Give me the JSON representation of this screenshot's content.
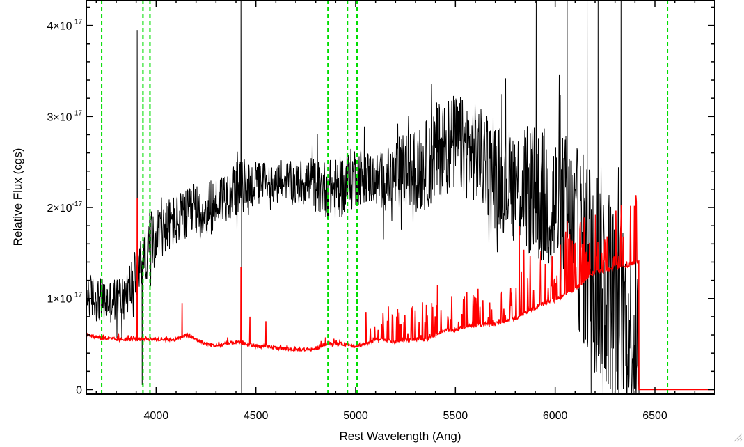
{
  "chart_data": {
    "type": "line",
    "title": "",
    "xlabel": "Rest Wavelength (Ang)",
    "ylabel": "Relative Flux (cgs)",
    "xlim": [
      3650,
      6800
    ],
    "ylim": [
      -5e-19,
      4.28e-17
    ],
    "x_ticks": [
      4000,
      4500,
      5000,
      5500,
      6000,
      6500
    ],
    "y_ticks": [
      {
        "value": 0,
        "label": "0"
      },
      {
        "value": 1e-17,
        "mantissa": "1",
        "times": "×",
        "base": "10",
        "exp": "-17"
      },
      {
        "value": 2e-17,
        "mantissa": "2",
        "times": "×",
        "base": "10",
        "exp": "-17"
      },
      {
        "value": 3e-17,
        "mantissa": "3",
        "times": "×",
        "base": "10",
        "exp": "-17"
      },
      {
        "value": 4e-17,
        "mantissa": "4",
        "times": "×",
        "base": "10",
        "exp": "-17"
      }
    ],
    "reference_lines": {
      "color": "#00dd00",
      "style": "dashed",
      "x": [
        3727,
        3934,
        3969,
        4861,
        4959,
        5007,
        6563
      ]
    },
    "series": [
      {
        "color": "#000000",
        "style": "noisy-spectrum",
        "x": [
          3650,
          3700,
          3750,
          3800,
          3850,
          3900,
          3950,
          4000,
          4050,
          4100,
          4150,
          4200,
          4250,
          4300,
          4350,
          4400,
          4450,
          4500,
          4550,
          4600,
          4650,
          4700,
          4750,
          4800,
          4850,
          4900,
          4950,
          5000,
          5050,
          5100,
          5150,
          5200,
          5250,
          5300,
          5350,
          5400,
          5450,
          5500,
          5550,
          5600,
          5650,
          5700,
          5750,
          5800,
          5850,
          5900,
          5950,
          6000,
          6050,
          6100,
          6150,
          6200,
          6250,
          6300,
          6350,
          6400
        ],
        "values": [
          1.05e-17,
          1e-17,
          9.5e-18,
          1e-17,
          1.05e-17,
          1.25e-17,
          1.5e-17,
          1.7e-17,
          1.8e-17,
          1.85e-17,
          1.9e-17,
          1.95e-17,
          1.95e-17,
          2.05e-17,
          2.15e-17,
          2.2e-17,
          2.25e-17,
          2.25e-17,
          2.3e-17,
          2.25e-17,
          2.3e-17,
          2.25e-17,
          2.3e-17,
          2.25e-17,
          2.2e-17,
          2.2e-17,
          2.25e-17,
          2.35e-17,
          2.35e-17,
          2.3e-17,
          2.3e-17,
          2.35e-17,
          2.4e-17,
          2.4e-17,
          2.45e-17,
          2.6e-17,
          2.7e-17,
          2.7e-17,
          2.65e-17,
          2.6e-17,
          2.5e-17,
          2.35e-17,
          2.3e-17,
          2.25e-17,
          2.2e-17,
          2.15e-17,
          2.1e-17,
          2e-17,
          1.95e-17,
          1.7e-17,
          1.5e-17,
          1.4e-17,
          1.2e-17,
          1e-17,
          8e-18,
          5e-18
        ],
        "noise": [
          2.5e-18,
          2.5e-18,
          2.5e-18,
          2.5e-18,
          2.8e-18,
          3e-18,
          3e-18,
          3e-18,
          3e-18,
          3e-18,
          3e-18,
          3e-18,
          3e-18,
          3e-18,
          3e-18,
          3e-18,
          3e-18,
          2.5e-18,
          2.2e-18,
          2e-18,
          2.2e-18,
          2.5e-18,
          2.8e-18,
          3e-18,
          3.2e-18,
          3.5e-18,
          3.5e-18,
          3.5e-18,
          3e-18,
          3e-18,
          3.5e-18,
          4e-18,
          4.5e-18,
          4.5e-18,
          5e-18,
          5.5e-18,
          5.5e-18,
          5.5e-18,
          5.5e-18,
          5.5e-18,
          5.5e-18,
          6e-18,
          6e-18,
          6.5e-18,
          7e-18,
          7.5e-18,
          8e-18,
          8.5e-18,
          9e-18,
          1e-17,
          1.1e-17,
          1.2e-17,
          1.2e-17,
          1.1e-17,
          1e-17,
          9e-18
        ],
        "spikes": [
          {
            "x": 3905,
            "value": 3.95e-17
          },
          {
            "x": 3930,
            "value": 5e-19
          },
          {
            "x": 4425,
            "value": 4.3e-17
          },
          {
            "x": 4428,
            "value": -5e-19
          },
          {
            "x": 5905,
            "value": 4.3e-17
          },
          {
            "x": 6060,
            "value": 4.3e-17
          },
          {
            "x": 6160,
            "value": 4.3e-17
          },
          {
            "x": 6180,
            "value": -5e-19
          },
          {
            "x": 6215,
            "value": 4.3e-17
          },
          {
            "x": 6240,
            "value": -5e-19
          },
          {
            "x": 6330,
            "value": 4.3e-17
          },
          {
            "x": 6360,
            "value": -5e-19
          }
        ],
        "end_x": 6420
      },
      {
        "color": "#ff0000",
        "style": "error-spectrum",
        "x": [
          3650,
          3700,
          3750,
          3800,
          3850,
          3900,
          3950,
          4000,
          4050,
          4100,
          4150,
          4200,
          4250,
          4300,
          4350,
          4400,
          4450,
          4500,
          4550,
          4600,
          4650,
          4700,
          4750,
          4800,
          4850,
          4900,
          4950,
          5000,
          5050,
          5100,
          5150,
          5200,
          5250,
          5300,
          5350,
          5400,
          5450,
          5500,
          5550,
          5600,
          5650,
          5700,
          5750,
          5800,
          5850,
          5900,
          5950,
          6000,
          6050,
          6100,
          6150,
          6200,
          6250,
          6300,
          6350,
          6400,
          6420
        ],
        "values": [
          6e-18,
          5.8e-18,
          5.6e-18,
          5.5e-18,
          5.5e-18,
          5.5e-18,
          5.6e-18,
          5.5e-18,
          5.5e-18,
          5.5e-18,
          6e-18,
          5.5e-18,
          5e-18,
          4.8e-18,
          5e-18,
          5.2e-18,
          5e-18,
          4.8e-18,
          4.7e-18,
          4.6e-18,
          4.5e-18,
          4.4e-18,
          4.4e-18,
          4.5e-18,
          5e-18,
          5e-18,
          5e-18,
          4.8e-18,
          5e-18,
          5.5e-18,
          5.5e-18,
          5.2e-18,
          5.5e-18,
          5.5e-18,
          5.5e-18,
          6e-18,
          6.5e-18,
          6.5e-18,
          7e-18,
          7e-18,
          7.2e-18,
          7.2e-18,
          7.5e-18,
          7.8e-18,
          8.5e-18,
          9e-18,
          9.5e-18,
          9.8e-18,
          1.05e-17,
          1.1e-17,
          1.2e-17,
          1.3e-17,
          1.3e-17,
          1.35e-17,
          1.35e-17,
          1.4e-17,
          1.4e-17
        ],
        "after_end_value": 0
      }
    ]
  }
}
